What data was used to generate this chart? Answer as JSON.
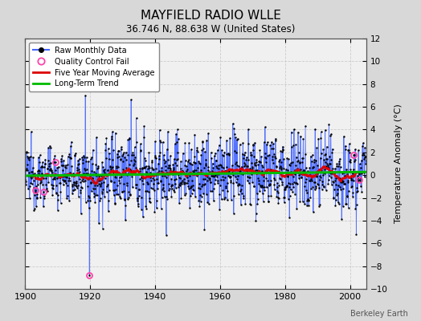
{
  "title": "MAYFIELD RADIO WLLE",
  "subtitle": "36.746 N, 88.638 W (United States)",
  "ylabel": "Temperature Anomaly (°C)",
  "attribution": "Berkeley Earth",
  "xlim": [
    1900,
    2005
  ],
  "ylim": [
    -10,
    12
  ],
  "yticks": [
    -10,
    -8,
    -6,
    -4,
    -2,
    0,
    2,
    4,
    6,
    8,
    10,
    12
  ],
  "xticks": [
    1900,
    1920,
    1940,
    1960,
    1980,
    2000
  ],
  "bg_color": "#d8d8d8",
  "plot_bg_color": "#f0f0f0",
  "raw_color": "#4466ff",
  "raw_dot_color": "#000000",
  "qc_fail_color": "#ff44aa",
  "moving_avg_color": "#dd0000",
  "trend_color": "#00bb00",
  "seed": 12345,
  "n_years_start": 1900,
  "n_years_end": 2004
}
